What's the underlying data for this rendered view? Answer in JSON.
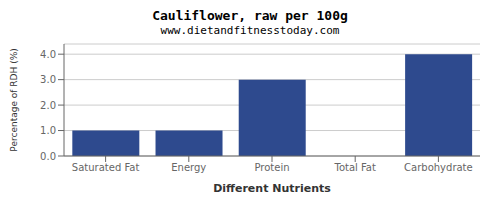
{
  "chart_data": {
    "type": "bar",
    "title": "Cauliflower, raw per 100g",
    "subtitle": "www.dietandfitnesstoday.com",
    "categories": [
      "Saturated Fat",
      "Energy",
      "Protein",
      "Total Fat",
      "Carbohydrate"
    ],
    "values": [
      1.0,
      1.0,
      3.0,
      0.0,
      4.0
    ],
    "color": "#2e4a8e",
    "xlabel": "Different Nutrients",
    "ylabel": "Percentage of RDH (%)",
    "ylim": [
      0.0,
      4.4
    ],
    "yticks": [
      {
        "value": 0.0,
        "label": "0.0"
      },
      {
        "value": 1.0,
        "label": "1.0"
      },
      {
        "value": 2.0,
        "label": "2.0"
      },
      {
        "value": 3.0,
        "label": "3.0"
      },
      {
        "value": 4.0,
        "label": "4.0"
      }
    ],
    "grid": true
  }
}
